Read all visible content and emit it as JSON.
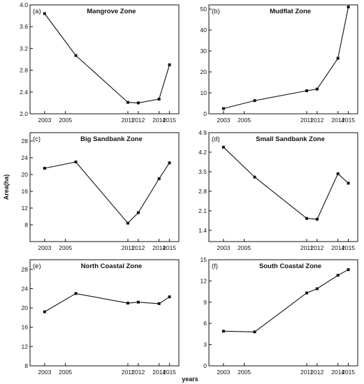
{
  "figure": {
    "ylabel": "Area(ha)",
    "xlabel": "years"
  },
  "chart_data": [
    {
      "type": "line",
      "label": "(a)",
      "title": "Mangrove Zone",
      "x": [
        2003,
        2006,
        2011,
        2012,
        2014,
        2015
      ],
      "values": [
        3.84,
        3.07,
        2.21,
        2.2,
        2.27,
        2.9
      ],
      "xticks": [
        2003,
        2005,
        2011,
        2012,
        2014,
        2015
      ],
      "ylim": [
        2.0,
        4.0
      ],
      "yticks": [
        "2.0",
        "2.4",
        "2.8",
        "3.2",
        "3.6",
        "4.0"
      ]
    },
    {
      "type": "line",
      "label": "(b)",
      "title": "Mudflat Zone",
      "x": [
        2003,
        2006,
        2011,
        2012,
        2014,
        2015
      ],
      "values": [
        2.5,
        6.3,
        11.0,
        11.8,
        26.5,
        51.0
      ],
      "xticks": [
        2003,
        2005,
        2011,
        2012,
        2014,
        2015
      ],
      "ylim": [
        0,
        52
      ],
      "yticks": [
        "0",
        "10",
        "20",
        "30",
        "40",
        "50"
      ]
    },
    {
      "type": "line",
      "label": "(c)",
      "title": "Big Sandbank Zone",
      "x": [
        2003,
        2006,
        2011,
        2012,
        2014,
        2015
      ],
      "values": [
        21.5,
        23.0,
        8.4,
        10.9,
        19.0,
        22.8
      ],
      "xticks": [
        2003,
        2005,
        2011,
        2012,
        2014,
        2015
      ],
      "ylim": [
        4,
        30
      ],
      "yticks": [
        "8",
        "12",
        "16",
        "20",
        "24",
        "28"
      ]
    },
    {
      "type": "line",
      "label": "(d)",
      "title": "Small Sandbank Zone",
      "x": [
        2003,
        2006,
        2011,
        2012,
        2014,
        2015
      ],
      "values": [
        4.38,
        3.31,
        1.83,
        1.8,
        3.43,
        3.09
      ],
      "xticks": [
        2003,
        2005,
        2011,
        2012,
        2014,
        2015
      ],
      "ylim": [
        1.0,
        4.9
      ],
      "yticks": [
        "1.4",
        "2.1",
        "2.8",
        "3.5",
        "4.2",
        "4.9"
      ]
    },
    {
      "type": "line",
      "label": "(e)",
      "title": "North Coastal Zone",
      "x": [
        2003,
        2006,
        2011,
        2012,
        2014,
        2015
      ],
      "values": [
        19.2,
        23.0,
        21.0,
        21.2,
        20.9,
        22.3
      ],
      "xticks": [
        2003,
        2005,
        2011,
        2012,
        2014,
        2015
      ],
      "ylim": [
        8,
        30
      ],
      "yticks": [
        "8",
        "12",
        "16",
        "20",
        "24",
        "28"
      ]
    },
    {
      "type": "line",
      "label": "(f)",
      "title": "South Coastal Zone",
      "x": [
        2003,
        2006,
        2011,
        2012,
        2014,
        2015
      ],
      "values": [
        4.9,
        4.8,
        10.3,
        10.9,
        12.8,
        13.6
      ],
      "xticks": [
        2003,
        2005,
        2011,
        2012,
        2014,
        2015
      ],
      "ylim": [
        0,
        15
      ],
      "yticks": [
        "0",
        "3",
        "6",
        "9",
        "12",
        "15"
      ]
    }
  ]
}
